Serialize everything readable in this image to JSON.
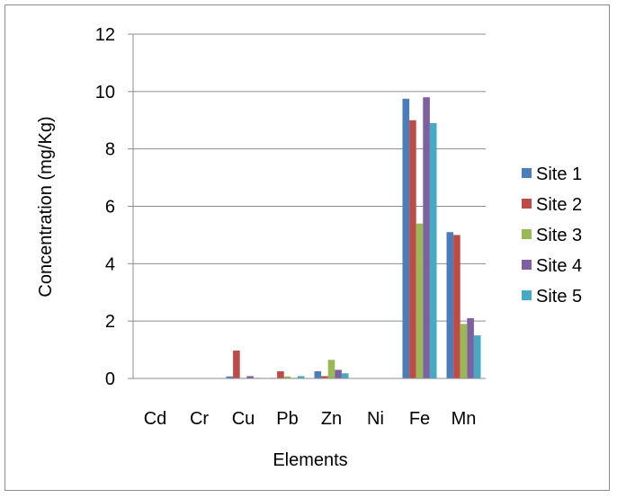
{
  "chart_data": {
    "type": "bar",
    "categories": [
      "Cd",
      "Cr",
      "Cu",
      "Pb",
      "Zn",
      "Ni",
      "Fe",
      "Mn"
    ],
    "series": [
      {
        "name": "Site 1",
        "color": "#4a7ebb",
        "values": [
          0,
          0,
          0.07,
          0.02,
          0.25,
          0,
          9.75,
          5.1
        ]
      },
      {
        "name": "Site 2",
        "color": "#be4b48",
        "values": [
          0,
          0,
          0.97,
          0.25,
          0.08,
          0,
          9.0,
          5.0
        ]
      },
      {
        "name": "Site 3",
        "color": "#98b954",
        "values": [
          0,
          0,
          0.02,
          0.07,
          0.65,
          0,
          5.4,
          1.9
        ]
      },
      {
        "name": "Site 4",
        "color": "#7d60a0",
        "values": [
          0,
          0,
          0.08,
          0.02,
          0.3,
          0,
          9.8,
          2.1
        ]
      },
      {
        "name": "Site 5",
        "color": "#46aac5",
        "values": [
          0,
          0,
          0.02,
          0.08,
          0.18,
          0,
          8.9,
          1.5
        ]
      }
    ],
    "xlabel": "Elements",
    "ylabel": "Concentration (mg/Kg)",
    "ylim": [
      0,
      12
    ],
    "yticks": [
      "0",
      "2",
      "4",
      "6",
      "8",
      "10",
      "12"
    ],
    "grid": "horizontal",
    "legend_position": "right"
  }
}
